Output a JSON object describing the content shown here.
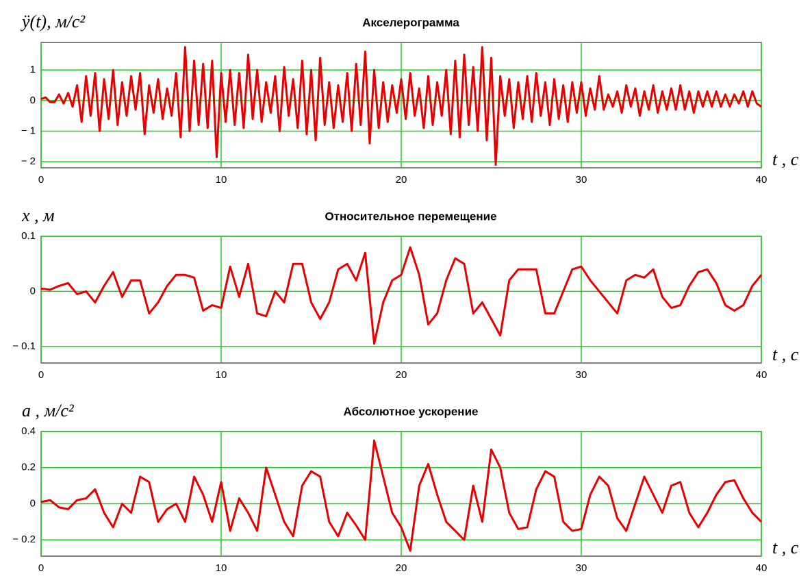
{
  "chart_data": [
    {
      "type": "line",
      "title": "Акселерограмма",
      "y_label": "ÿ(t), м/c²",
      "x_label": "t , c",
      "x": [
        0,
        0.25,
        0.5,
        0.75,
        1,
        1.25,
        1.5,
        1.75,
        2,
        2.25,
        2.5,
        2.75,
        3,
        3.25,
        3.5,
        3.75,
        4,
        4.25,
        4.5,
        4.75,
        5,
        5.25,
        5.5,
        5.75,
        6,
        6.25,
        6.5,
        6.75,
        7,
        7.25,
        7.5,
        7.75,
        8,
        8.25,
        8.5,
        8.75,
        9,
        9.25,
        9.5,
        9.75,
        10,
        10.25,
        10.5,
        10.75,
        11,
        11.25,
        11.5,
        11.75,
        12,
        12.25,
        12.5,
        12.75,
        13,
        13.25,
        13.5,
        13.75,
        14,
        14.25,
        14.5,
        14.75,
        15,
        15.25,
        15.5,
        15.75,
        16,
        16.25,
        16.5,
        16.75,
        17,
        17.25,
        17.5,
        17.75,
        18,
        18.25,
        18.5,
        18.75,
        19,
        19.25,
        19.5,
        19.75,
        20,
        20.25,
        20.5,
        20.75,
        21,
        21.25,
        21.5,
        21.75,
        22,
        22.25,
        22.5,
        22.75,
        23,
        23.25,
        23.5,
        23.75,
        24,
        24.25,
        24.5,
        24.75,
        25,
        25.25,
        25.5,
        25.75,
        26,
        26.25,
        26.5,
        26.75,
        27,
        27.25,
        27.5,
        27.75,
        28,
        28.25,
        28.5,
        28.75,
        29,
        29.25,
        29.5,
        29.75,
        30,
        30.25,
        30.5,
        30.75,
        31,
        31.25,
        31.5,
        31.75,
        32,
        32.25,
        32.5,
        32.75,
        33,
        33.25,
        33.5,
        33.75,
        34,
        34.25,
        34.5,
        34.75,
        35,
        35.25,
        35.5,
        35.75,
        36,
        36.25,
        36.5,
        36.75,
        37,
        37.25,
        37.5,
        37.75,
        38,
        38.25,
        38.5,
        38.75,
        39,
        39.25,
        39.5,
        39.75,
        40
      ],
      "values": [
        0.05,
        0.1,
        -0.05,
        -0.05,
        0.2,
        -0.1,
        0.25,
        -0.2,
        0.5,
        -0.7,
        0.8,
        -0.5,
        0.9,
        -1.0,
        0.7,
        -0.6,
        1.0,
        -0.8,
        0.6,
        -0.5,
        0.8,
        -0.3,
        0.9,
        -1.1,
        0.5,
        -0.4,
        0.7,
        -0.6,
        0.4,
        -0.5,
        0.9,
        -1.2,
        1.75,
        -1.0,
        1.3,
        -0.8,
        1.2,
        -0.9,
        1.3,
        -1.85,
        0.9,
        -0.7,
        1.0,
        -0.8,
        0.9,
        -0.9,
        1.5,
        -0.6,
        1.0,
        -0.7,
        0.6,
        -0.4,
        0.8,
        -1.0,
        1.1,
        -0.5,
        0.7,
        -0.9,
        1.3,
        -1.1,
        1.0,
        -1.3,
        1.4,
        -0.8,
        0.6,
        -0.9,
        0.5,
        -0.7,
        0.9,
        -1.0,
        1.2,
        -0.8,
        1.6,
        -1.4,
        1.0,
        -0.9,
        0.6,
        -0.7,
        0.5,
        -0.4,
        0.7,
        -0.6,
        0.9,
        -0.5,
        0.4,
        -0.9,
        0.8,
        -0.8,
        0.6,
        -0.5,
        1.0,
        -1.1,
        1.3,
        -1.2,
        1.5,
        -0.8,
        1.1,
        -1.0,
        1.75,
        -1.3,
        1.4,
        -2.1,
        0.8,
        -0.5,
        0.7,
        -0.9,
        0.6,
        -0.6,
        0.8,
        -0.7,
        0.9,
        -0.5,
        0.6,
        -0.8,
        0.7,
        -0.6,
        0.5,
        -0.7,
        0.6,
        -0.4,
        0.6,
        -0.5,
        0.4,
        -0.3,
        0.8,
        -0.3,
        0.2,
        -0.2,
        0.3,
        -0.4,
        0.5,
        -0.2,
        0.4,
        -0.5,
        0.3,
        -0.3,
        0.5,
        -0.4,
        0.3,
        -0.3,
        0.4,
        -0.3,
        0.5,
        -0.3,
        0.3,
        -0.4,
        0.3,
        -0.2,
        0.3,
        -0.2,
        0.3,
        -0.2,
        0.2,
        -0.2,
        0.2,
        -0.1,
        0.3,
        -0.2,
        0.3,
        -0.1,
        -0.2
      ],
      "color": "#e80000",
      "xlim": [
        0,
        40
      ],
      "ylim": [
        -2.2,
        1.9
      ],
      "xticks": [
        0,
        10,
        20,
        30,
        40
      ],
      "yticks": [
        {
          "value": -2,
          "label": "− 2"
        },
        {
          "value": -1,
          "label": "− 1"
        },
        0,
        1
      ],
      "grid": true
    },
    {
      "type": "line",
      "title": "Относительное перемещение",
      "y_label": "x , м",
      "x_label": "t , c",
      "x": [
        0,
        0.5,
        1,
        1.5,
        2,
        2.5,
        3,
        3.5,
        4,
        4.5,
        5,
        5.5,
        6,
        6.5,
        7,
        7.5,
        8,
        8.5,
        9,
        9.5,
        10,
        10.5,
        11,
        11.5,
        12,
        12.5,
        13,
        13.5,
        14,
        14.5,
        15,
        15.5,
        16,
        16.5,
        17,
        17.5,
        18,
        18.5,
        19,
        19.5,
        20,
        20.5,
        21,
        21.5,
        22,
        22.5,
        23,
        23.5,
        24,
        24.5,
        25,
        25.5,
        26,
        26.5,
        27,
        27.5,
        28,
        28.5,
        29,
        29.5,
        30,
        30.5,
        31,
        31.5,
        32,
        32.5,
        33,
        33.5,
        34,
        34.5,
        35,
        35.5,
        36,
        36.5,
        37,
        37.5,
        38,
        38.5,
        39,
        39.5,
        40
      ],
      "values": [
        0.005,
        0.003,
        0.01,
        0.015,
        -0.005,
        0,
        -0.02,
        0.01,
        0.035,
        -0.01,
        0.02,
        0.02,
        -0.04,
        -0.02,
        0.01,
        0.03,
        0.03,
        0.025,
        -0.035,
        -0.025,
        -0.03,
        0.045,
        -0.01,
        0.05,
        -0.04,
        -0.045,
        0.0,
        -0.02,
        0.05,
        0.05,
        -0.02,
        -0.05,
        -0.02,
        0.04,
        0.05,
        0.02,
        0.07,
        -0.095,
        -0.02,
        0.02,
        0.03,
        0.08,
        0.03,
        -0.06,
        -0.04,
        0.02,
        0.06,
        0.05,
        -0.04,
        -0.02,
        -0.05,
        -0.08,
        0.02,
        0.04,
        0.04,
        0.04,
        -0.04,
        -0.04,
        0.0,
        0.04,
        0.045,
        0.02,
        0.0,
        -0.02,
        -0.04,
        0.02,
        0.03,
        0.025,
        0.04,
        -0.01,
        -0.03,
        -0.025,
        0.01,
        0.035,
        0.04,
        0.015,
        -0.025,
        -0.035,
        -0.025,
        0.01,
        0.03
      ],
      "color": "#e80000",
      "xlim": [
        0,
        40
      ],
      "ylim": [
        -0.13,
        0.1
      ],
      "xticks": [
        0,
        10,
        20,
        30,
        40
      ],
      "yticks": [
        {
          "value": -0.1,
          "label": "− 0.1"
        },
        0,
        0.1
      ],
      "grid": true
    },
    {
      "type": "line",
      "title": "Абсолютное ускорение",
      "y_label": "a , м/c²",
      "x_label": "t , c",
      "x": [
        0,
        0.5,
        1,
        1.5,
        2,
        2.5,
        3,
        3.5,
        4,
        4.5,
        5,
        5.5,
        6,
        6.5,
        7,
        7.5,
        8,
        8.5,
        9,
        9.5,
        10,
        10.5,
        11,
        11.5,
        12,
        12.5,
        13,
        13.5,
        14,
        14.5,
        15,
        15.5,
        16,
        16.5,
        17,
        17.5,
        18,
        18.5,
        19,
        19.5,
        20,
        20.5,
        21,
        21.5,
        22,
        22.5,
        23,
        23.5,
        24,
        24.5,
        25,
        25.5,
        26,
        26.5,
        27,
        27.5,
        28,
        28.5,
        29,
        29.5,
        30,
        30.5,
        31,
        31.5,
        32,
        32.5,
        33,
        33.5,
        34,
        34.5,
        35,
        35.5,
        36,
        36.5,
        37,
        37.5,
        38,
        38.5,
        39,
        39.5,
        40
      ],
      "values": [
        0.01,
        0.02,
        -0.02,
        -0.03,
        0.02,
        0.03,
        0.08,
        -0.05,
        -0.13,
        0.0,
        -0.05,
        0.15,
        0.12,
        -0.1,
        -0.03,
        0.0,
        -0.1,
        0.15,
        0.05,
        -0.1,
        0.12,
        -0.15,
        0.03,
        -0.05,
        -0.15,
        0.2,
        0.05,
        -0.1,
        -0.18,
        0.1,
        0.18,
        0.15,
        -0.1,
        -0.18,
        -0.05,
        -0.12,
        -0.2,
        0.35,
        0.15,
        -0.05,
        -0.13,
        -0.26,
        0.1,
        0.22,
        0.05,
        -0.1,
        -0.15,
        -0.2,
        0.1,
        -0.1,
        0.3,
        0.2,
        -0.05,
        -0.14,
        -0.13,
        0.08,
        0.18,
        0.15,
        -0.1,
        -0.15,
        -0.14,
        0.05,
        0.15,
        0.1,
        -0.08,
        -0.15,
        0.0,
        0.15,
        0.05,
        -0.05,
        0.1,
        0.12,
        -0.05,
        -0.13,
        -0.05,
        0.05,
        0.12,
        0.13,
        0.03,
        -0.05,
        -0.1
      ],
      "color": "#e80000",
      "xlim": [
        0,
        40
      ],
      "ylim": [
        -0.29,
        0.4
      ],
      "xticks": [
        0,
        10,
        20,
        30,
        40
      ],
      "yticks": [
        {
          "value": -0.2,
          "label": "− 0.2"
        },
        0,
        0.2,
        0.4
      ],
      "grid": true
    }
  ]
}
